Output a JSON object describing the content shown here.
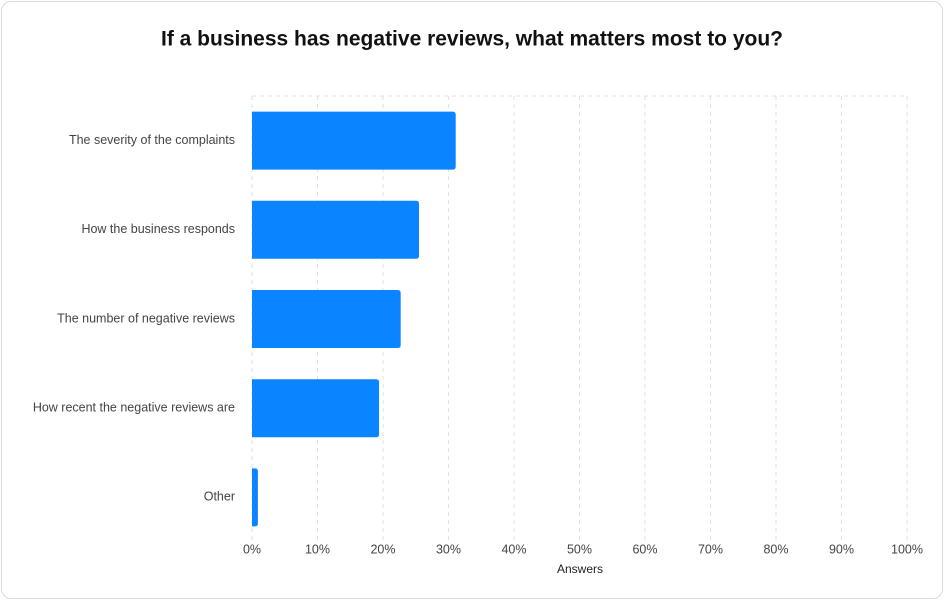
{
  "chart_data": {
    "type": "hbar",
    "title": "If a business has negative reviews, what matters most to you?",
    "x_label": "Answers",
    "categories": [
      "The severity of the complaints",
      "How the business responds",
      "The number of negative reviews",
      "How recent the negative reviews are",
      "Other"
    ],
    "values": [
      31.1,
      25.5,
      22.7,
      19.4,
      0.9
    ],
    "color": "#0a84ff",
    "xlim": [
      0,
      100
    ],
    "xticks": [
      {
        "value": 0,
        "label": "0%"
      },
      {
        "value": 10,
        "label": "10%"
      },
      {
        "value": 20,
        "label": "20%"
      },
      {
        "value": 30,
        "label": "30%"
      },
      {
        "value": 40,
        "label": "40%"
      },
      {
        "value": 50,
        "label": "50%"
      },
      {
        "value": 60,
        "label": "60%"
      },
      {
        "value": 70,
        "label": "70%"
      },
      {
        "value": 80,
        "label": "80%"
      },
      {
        "value": 90,
        "label": "90%"
      },
      {
        "value": 100,
        "label": "100%"
      }
    ],
    "grid": true
  }
}
